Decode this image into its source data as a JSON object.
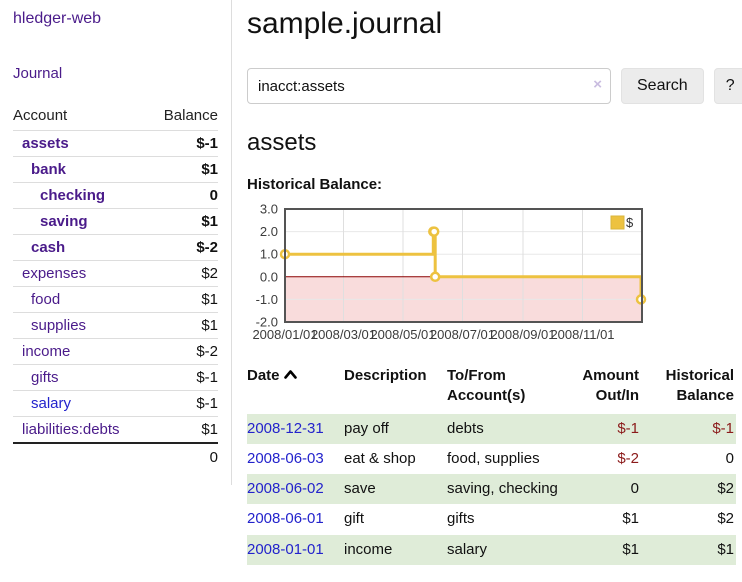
{
  "sidebar": {
    "brand": "hledger-web",
    "journal_link": "Journal",
    "accounts_header": {
      "account": "Account",
      "balance": "Balance"
    },
    "accounts": [
      {
        "name": "assets",
        "level": 1,
        "selected": true,
        "link": "visited",
        "balance": "$-1",
        "tone": "negative-strong"
      },
      {
        "name": "bank",
        "level": 2,
        "selected": true,
        "link": "visited",
        "balance": "$1",
        "tone": "normal"
      },
      {
        "name": "checking",
        "level": 3,
        "selected": true,
        "link": "visited",
        "balance": "0",
        "tone": "normal"
      },
      {
        "name": "saving",
        "level": 3,
        "selected": true,
        "link": "visited",
        "balance": "$1",
        "tone": "normal"
      },
      {
        "name": "cash",
        "level": 2,
        "selected": true,
        "link": "visited",
        "balance": "$-2",
        "tone": "negative-strong"
      },
      {
        "name": "expenses",
        "level": 1,
        "selected": false,
        "link": "visited",
        "balance": "$2",
        "tone": "normal"
      },
      {
        "name": "food",
        "level": 2,
        "selected": false,
        "link": "visited",
        "balance": "$1",
        "tone": "normal"
      },
      {
        "name": "supplies",
        "level": 2,
        "selected": false,
        "link": "visited",
        "balance": "$1",
        "tone": "normal"
      },
      {
        "name": "income",
        "level": 1,
        "selected": false,
        "link": "visited",
        "balance": "$-2",
        "tone": "negative-soft"
      },
      {
        "name": "gifts",
        "level": 2,
        "selected": false,
        "link": "visited",
        "balance": "$-1",
        "tone": "negative-soft"
      },
      {
        "name": "salary",
        "level": 2,
        "selected": false,
        "link": "unvisited",
        "balance": "$-1",
        "tone": "negative-soft"
      },
      {
        "name": "liabilities:debts",
        "level": 1,
        "selected": false,
        "link": "visited",
        "balance": "$1",
        "tone": "normal"
      }
    ],
    "total": "0"
  },
  "main": {
    "title": "sample.journal",
    "search": {
      "value": "inacct:assets",
      "clear": "×",
      "search_button": "Search",
      "help_button": "?"
    },
    "account_heading": "assets",
    "chart_heading": "Historical Balance:"
  },
  "chart_data": {
    "type": "line",
    "step": true,
    "title": "Historical Balance:",
    "series": [
      {
        "name": "$",
        "color": "#edc240",
        "points": [
          {
            "x": "2008-01-01",
            "y": 1
          },
          {
            "x": "2008-06-01",
            "y": 2
          },
          {
            "x": "2008-06-02",
            "y": 2
          },
          {
            "x": "2008-06-03",
            "y": 0
          },
          {
            "x": "2008-12-31",
            "y": -1
          }
        ]
      }
    ],
    "x_range": [
      "2008-01-01",
      "2009-01-01"
    ],
    "x_ticks": [
      "2008/01/01",
      "2008/03/01",
      "2008/05/01",
      "2008/07/01",
      "2008/09/01",
      "2008/11/01"
    ],
    "y_ticks": [
      3.0,
      2.0,
      1.0,
      0.0,
      -1.0,
      -2.0
    ],
    "ylim": [
      -2,
      3
    ],
    "grid": true,
    "legend_position": "top-right",
    "marker": "circle",
    "negative_region_color": "#f9dcdc",
    "zero_line_color": "#8b0000",
    "border_color": "#545454"
  },
  "transactions": {
    "columns": [
      {
        "lines": [
          "Date"
        ],
        "align": "left",
        "sort": "asc"
      },
      {
        "lines": [
          "Description"
        ],
        "align": "left"
      },
      {
        "lines": [
          "To/From",
          "Account(s)"
        ],
        "align": "left"
      },
      {
        "lines": [
          "Amount",
          "Out/In"
        ],
        "align": "right"
      },
      {
        "lines": [
          "Historical",
          "Balance"
        ],
        "align": "right"
      }
    ],
    "rows": [
      {
        "date": "2008-12-31",
        "description": "pay off",
        "accounts": "debts",
        "amount": "$-1",
        "amount_negative": true,
        "balance": "$-1",
        "balance_negative": true
      },
      {
        "date": "2008-06-03",
        "description": "eat & shop",
        "accounts": "food, supplies",
        "amount": "$-2",
        "amount_negative": true,
        "balance": "0",
        "balance_negative": false
      },
      {
        "date": "2008-06-02",
        "description": "save",
        "accounts": "saving, checking",
        "amount": "0",
        "amount_negative": false,
        "balance": "$2",
        "balance_negative": false
      },
      {
        "date": "2008-06-01",
        "description": "gift",
        "accounts": "gifts",
        "amount": "$1",
        "amount_negative": false,
        "balance": "$2",
        "balance_negative": false
      },
      {
        "date": "2008-01-01",
        "description": "income",
        "accounts": "salary",
        "amount": "$1",
        "amount_negative": false,
        "balance": "$1",
        "balance_negative": false
      }
    ]
  }
}
